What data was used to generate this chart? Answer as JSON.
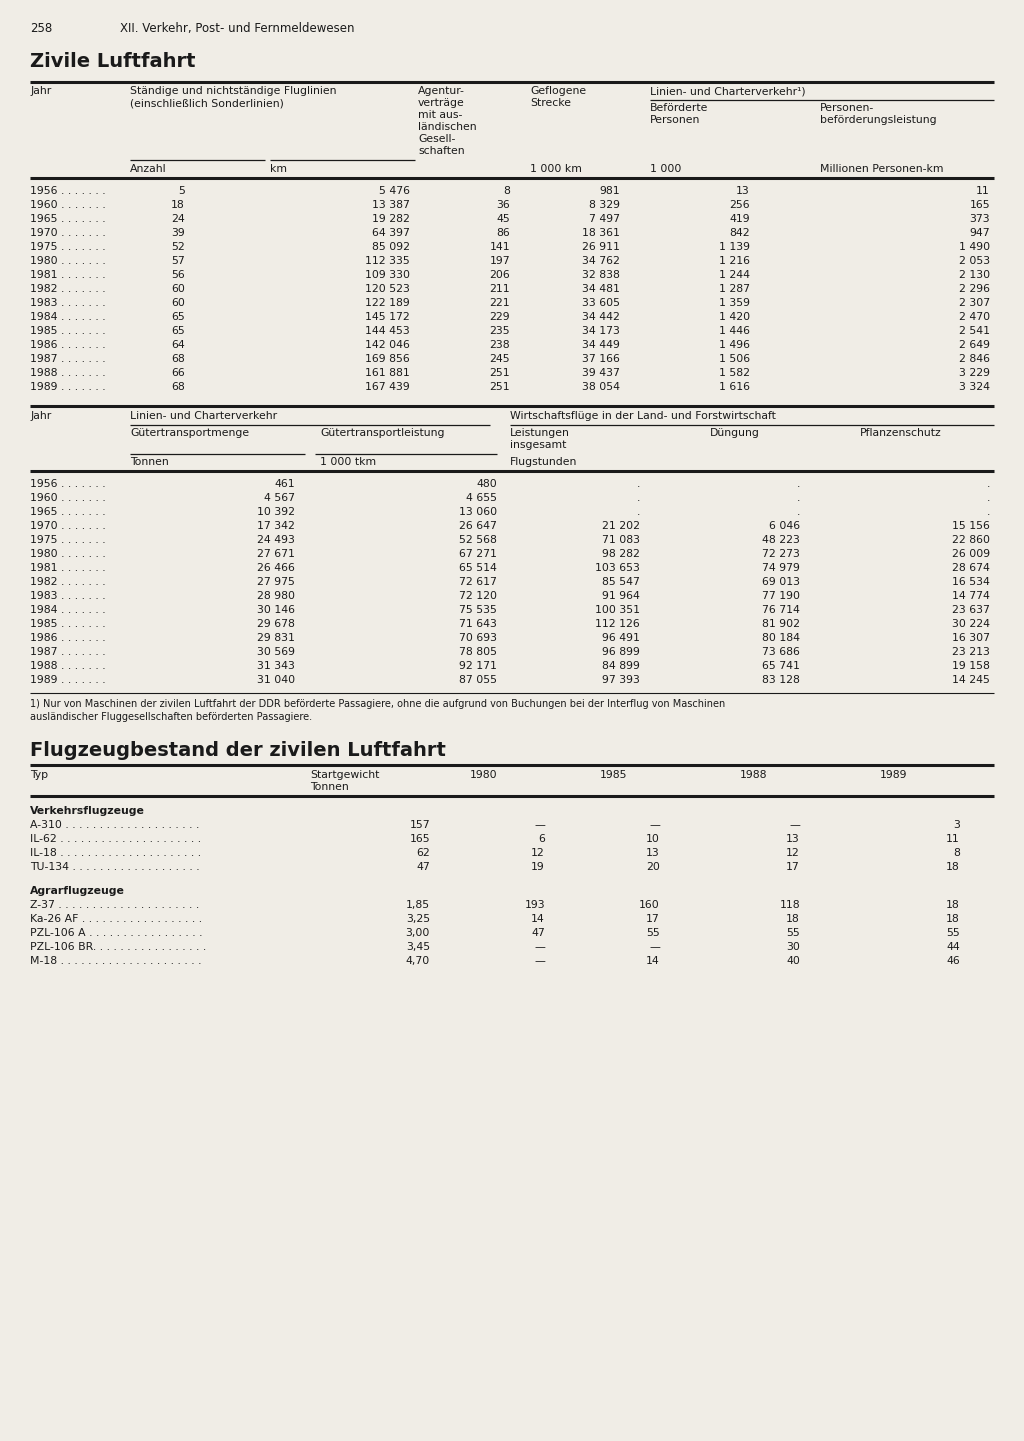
{
  "page_number": "258",
  "page_header": "XII. Verkehr, Post- und Fernmeldewesen",
  "section1_title": "Zivile Luftfahrt",
  "section2_title": "Flugzeugbestand der zivilen Luftfahrt",
  "table1_data": [
    [
      "1956",
      "5",
      "5 476",
      "8",
      "981",
      "13",
      "11"
    ],
    [
      "1960",
      "18",
      "13 387",
      "36",
      "8 329",
      "256",
      "165"
    ],
    [
      "1965",
      "24",
      "19 282",
      "45",
      "7 497",
      "419",
      "373"
    ],
    [
      "1970",
      "39",
      "64 397",
      "86",
      "18 361",
      "842",
      "947"
    ],
    [
      "1975",
      "52",
      "85 092",
      "141",
      "26 911",
      "1 139",
      "1 490"
    ],
    [
      "1980",
      "57",
      "112 335",
      "197",
      "34 762",
      "1 216",
      "2 053"
    ],
    [
      "1981",
      "56",
      "109 330",
      "206",
      "32 838",
      "1 244",
      "2 130"
    ],
    [
      "1982",
      "60",
      "120 523",
      "211",
      "34 481",
      "1 287",
      "2 296"
    ],
    [
      "1983",
      "60",
      "122 189",
      "221",
      "33 605",
      "1 359",
      "2 307"
    ],
    [
      "1984",
      "65",
      "145 172",
      "229",
      "34 442",
      "1 420",
      "2 470"
    ],
    [
      "1985",
      "65",
      "144 453",
      "235",
      "34 173",
      "1 446",
      "2 541"
    ],
    [
      "1986",
      "64",
      "142 046",
      "238",
      "34 449",
      "1 496",
      "2 649"
    ],
    [
      "1987",
      "68",
      "169 856",
      "245",
      "37 166",
      "1 506",
      "2 846"
    ],
    [
      "1988",
      "66",
      "161 881",
      "251",
      "39 437",
      "1 582",
      "3 229"
    ],
    [
      "1989",
      "68",
      "167 439",
      "251",
      "38 054",
      "1 616",
      "3 324"
    ]
  ],
  "table2_data": [
    [
      "1956",
      "461",
      "480",
      ".",
      ".",
      "."
    ],
    [
      "1960",
      "4 567",
      "4 655",
      ".",
      ".",
      "."
    ],
    [
      "1965",
      "10 392",
      "13 060",
      ".",
      ".",
      "."
    ],
    [
      "1970",
      "17 342",
      "26 647",
      "21 202",
      "6 046",
      "15 156"
    ],
    [
      "1975",
      "24 493",
      "52 568",
      "71 083",
      "48 223",
      "22 860"
    ],
    [
      "1980",
      "27 671",
      "67 271",
      "98 282",
      "72 273",
      "26 009"
    ],
    [
      "1981",
      "26 466",
      "65 514",
      "103 653",
      "74 979",
      "28 674"
    ],
    [
      "1982",
      "27 975",
      "72 617",
      "85 547",
      "69 013",
      "16 534"
    ],
    [
      "1983",
      "28 980",
      "72 120",
      "91 964",
      "77 190",
      "14 774"
    ],
    [
      "1984",
      "30 146",
      "75 535",
      "100 351",
      "76 714",
      "23 637"
    ],
    [
      "1985",
      "29 678",
      "71 643",
      "112 126",
      "81 902",
      "30 224"
    ],
    [
      "1986",
      "29 831",
      "70 693",
      "96 491",
      "80 184",
      "16 307"
    ],
    [
      "1987",
      "30 569",
      "78 805",
      "96 899",
      "73 686",
      "23 213"
    ],
    [
      "1988",
      "31 343",
      "92 171",
      "84 899",
      "65 741",
      "19 158"
    ],
    [
      "1989",
      "31 040",
      "87 055",
      "97 393",
      "83 128",
      "14 245"
    ]
  ],
  "footnote_line1": "1) Nur von Maschinen der zivilen Luftfahrt der DDR beförderte Passagiere, ohne die aufgrund von Buchungen bei der Interflug von Maschinen",
  "footnote_line2": "ausländischer Fluggesellschaften beförderten Passagiere.",
  "table3_group1": "Verkehrsflugzeuge",
  "table3_group2": "Agrarflugzeuge",
  "table3_data": [
    [
      "A-310",
      "157",
      "—",
      "—",
      "—",
      "3"
    ],
    [
      "IL-62",
      "165",
      "6",
      "10",
      "13",
      "11"
    ],
    [
      "IL-18",
      "62",
      "12",
      "13",
      "12",
      "8"
    ],
    [
      "TU-134",
      "47",
      "19",
      "20",
      "17",
      "18"
    ]
  ],
  "table3_data2": [
    [
      "Z-37",
      "1,85",
      "193",
      "160",
      "118",
      "18"
    ],
    [
      "Ka-26 AF",
      "3,25",
      "14",
      "17",
      "18",
      "18"
    ],
    [
      "PZL-106 A",
      "3,00",
      "47",
      "55",
      "55",
      "55"
    ],
    [
      "PZL-106 BR.",
      "3,45",
      "—",
      "—",
      "30",
      "44"
    ],
    [
      "M-18",
      "4,70",
      "—",
      "14",
      "40",
      "46"
    ]
  ],
  "bg_color": "#f0ede6",
  "text_color": "#1a1a1a",
  "line_color": "#1a1a1a"
}
